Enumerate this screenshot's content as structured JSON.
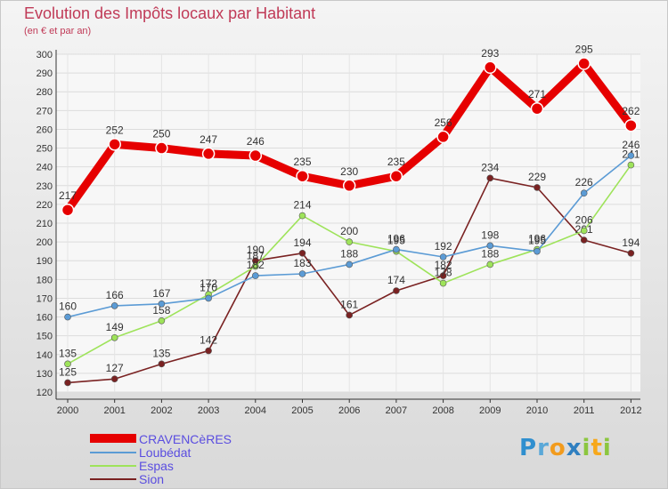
{
  "chart_data": {
    "type": "line",
    "title": "Evolution des Impôts locaux par Habitant",
    "subtitle": "(en € et par an)",
    "x": [
      "2000",
      "2001",
      "2002",
      "2003",
      "2004",
      "2005",
      "2006",
      "2007",
      "2008",
      "2009",
      "2010",
      "2011",
      "2012"
    ],
    "ylim": [
      120,
      300
    ],
    "ytick_step": 10,
    "grid": true,
    "series": [
      {
        "name": "CRAVENCèRES",
        "color": "#e60000",
        "values": [
          217,
          252,
          250,
          247,
          246,
          235,
          230,
          235,
          256,
          293,
          271,
          295,
          262
        ]
      },
      {
        "name": "Loubédat",
        "color": "#5b9bd5",
        "values": [
          160,
          166,
          167,
          170,
          182,
          183,
          188,
          196,
          192,
          198,
          195,
          226,
          246
        ]
      },
      {
        "name": "Espas",
        "color": "#9ee35a",
        "values": [
          135,
          149,
          158,
          172,
          187,
          214,
          200,
          195,
          178,
          188,
          196,
          206,
          241
        ]
      },
      {
        "name": "Sion",
        "color": "#7a2222",
        "values": [
          125,
          127,
          135,
          142,
          190,
          194,
          161,
          174,
          182,
          234,
          229,
          201,
          194
        ]
      }
    ]
  },
  "legend": {
    "items": [
      {
        "label": "CRAVENCèRES",
        "text_color": "#5a4de0"
      },
      {
        "label": "Loubédat",
        "text_color": "#5a4de0"
      },
      {
        "label": "Espas",
        "text_color": "#5a4de0"
      },
      {
        "label": "Sion",
        "text_color": "#5a4de0"
      }
    ]
  },
  "brand": {
    "p": "P",
    "r": "r",
    "o": "o",
    "x": "x",
    "i": "i",
    "t": "t",
    "i2": "i"
  }
}
